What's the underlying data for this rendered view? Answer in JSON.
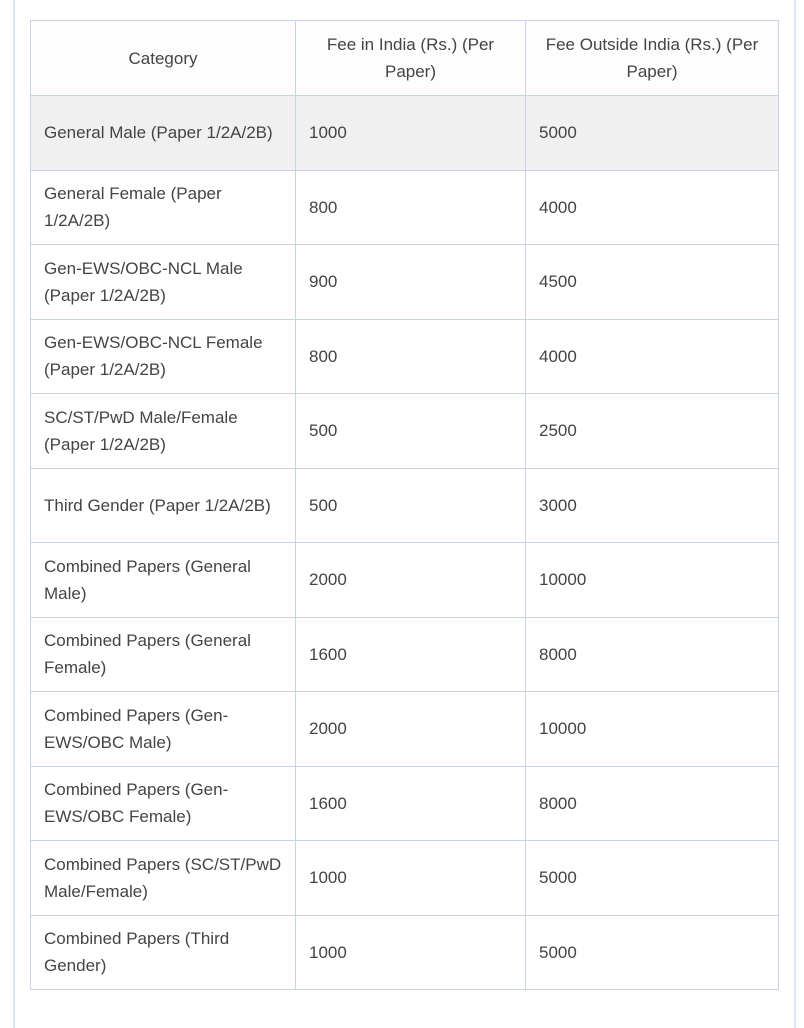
{
  "table": {
    "headers": [
      "Category",
      "Fee in India (Rs.) (Per Paper)",
      "Fee Outside India (Rs.) (Per Paper)"
    ],
    "rows": [
      [
        "General Male (Paper 1/2A/2B)",
        "1000",
        "5000"
      ],
      [
        "General Female (Paper 1/2A/2B)",
        "800",
        "4000"
      ],
      [
        "Gen-EWS/OBC-NCL Male (Paper 1/2A/2B)",
        "900",
        "4500"
      ],
      [
        "Gen-EWS/OBC-NCL Female (Paper 1/2A/2B)",
        "800",
        "4000"
      ],
      [
        "SC/ST/PwD Male/Female (Paper 1/2A/2B)",
        "500",
        "2500"
      ],
      [
        "Third Gender (Paper 1/2A/2B)",
        "500",
        "3000"
      ],
      [
        "Combined Papers (General Male)",
        "2000",
        "10000"
      ],
      [
        "Combined Papers (General Female)",
        "1600",
        "8000"
      ],
      [
        "Combined Papers (Gen-EWS/OBC Male)",
        "2000",
        "10000"
      ],
      [
        "Combined Papers (Gen-EWS/OBC Female)",
        "1600",
        "8000"
      ],
      [
        "Combined Papers (SC/ST/PwD Male/Female)",
        "1000",
        "5000"
      ],
      [
        "Combined Papers (Third Gender)",
        "1000",
        "5000"
      ]
    ]
  }
}
